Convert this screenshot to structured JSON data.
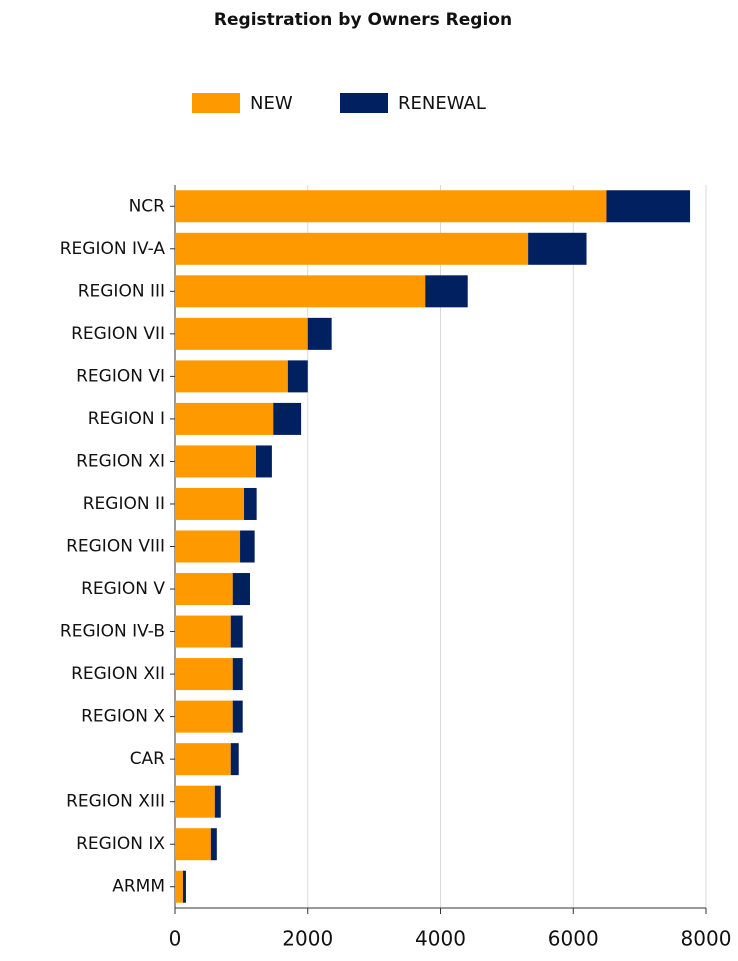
{
  "chart_data": {
    "type": "stacked-barh",
    "title": "Registration by Owners Region",
    "categories": [
      "NCR",
      "REGION IV-A",
      "REGION III",
      "REGION VII",
      "REGION VI",
      "REGION I",
      "REGION XI",
      "REGION II",
      "REGION VIII",
      "REGION V",
      "REGION IV-B",
      "REGION XII",
      "REGION X",
      "CAR",
      "REGION XIII",
      "REGION IX",
      "ARMM"
    ],
    "series": [
      {
        "name": "NEW",
        "color": "#ff9900",
        "values": [
          6500,
          5320,
          3770,
          2000,
          1700,
          1480,
          1220,
          1040,
          980,
          870,
          840,
          870,
          870,
          840,
          600,
          540,
          120
        ]
      },
      {
        "name": "RENEWAL",
        "color": "#002060",
        "values": [
          1260,
          880,
          640,
          360,
          300,
          420,
          240,
          190,
          220,
          260,
          180,
          150,
          150,
          120,
          90,
          90,
          45
        ]
      }
    ],
    "xlim": [
      0,
      8000
    ],
    "xticks": [
      0,
      2000,
      4000,
      6000,
      8000
    ],
    "grid": true,
    "legend": "top"
  }
}
